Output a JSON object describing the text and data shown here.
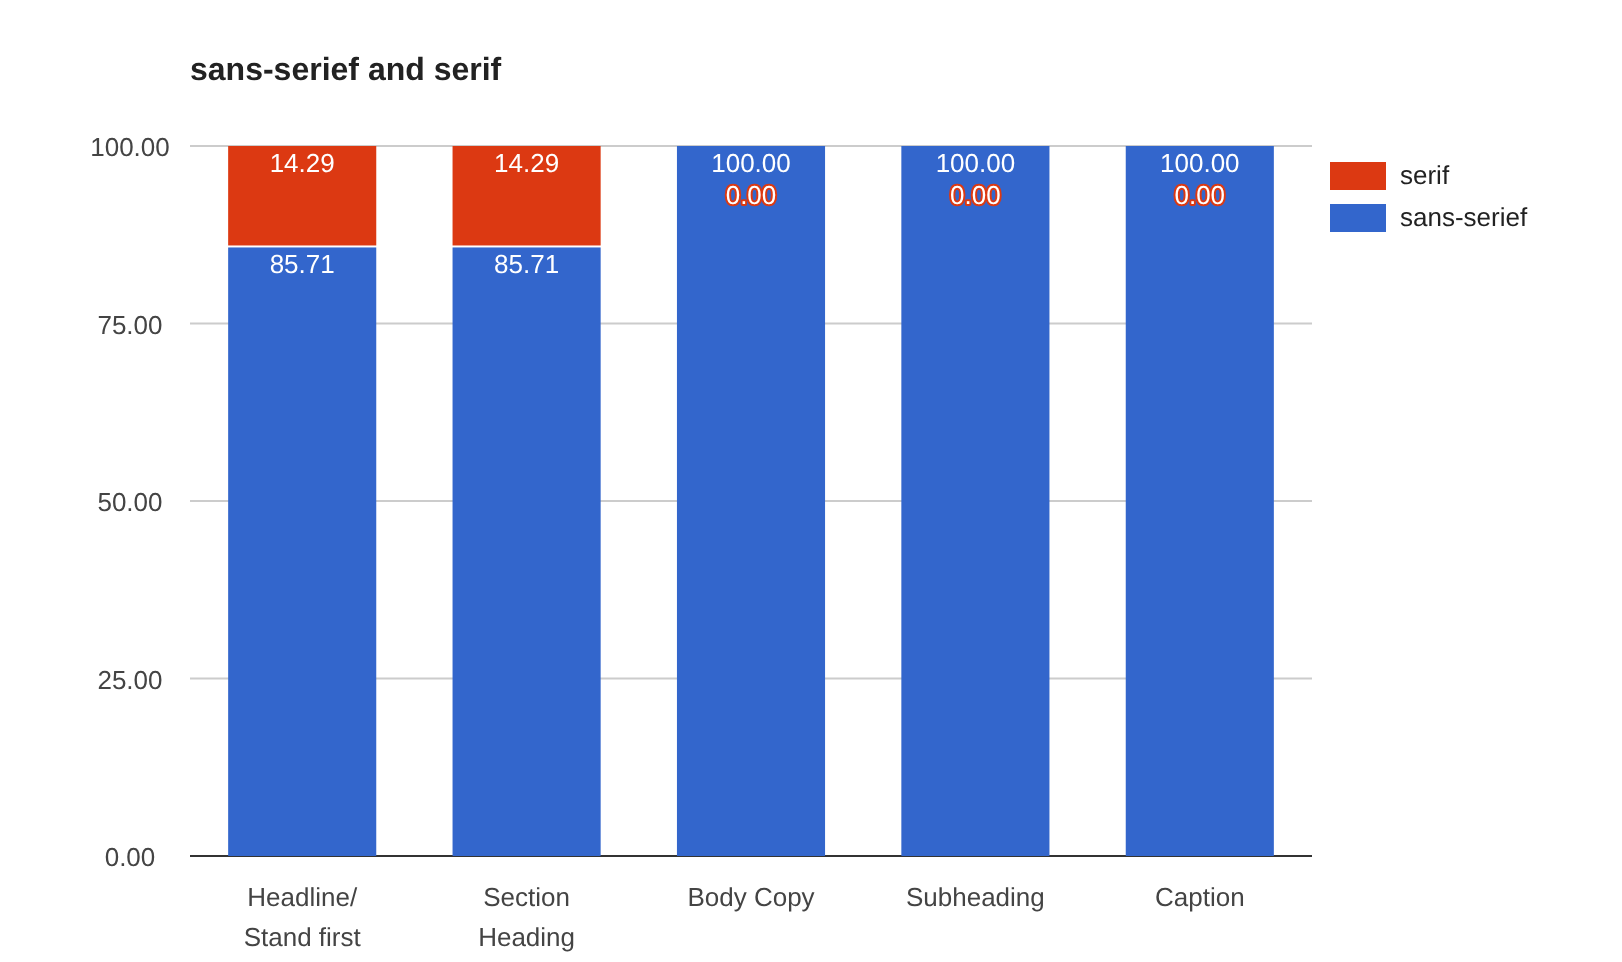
{
  "chart_data": {
    "type": "bar",
    "title": "sans-serief and serif",
    "stacked": true,
    "categories": [
      "Headline/ Stand first",
      "Section Heading",
      "Body Copy",
      "Subheading",
      "Caption"
    ],
    "series": [
      {
        "name": "sans-serief",
        "color": "#3366cc",
        "values": [
          85.71,
          85.71,
          100,
          100,
          100
        ],
        "value_labels": [
          "85.71",
          "85.71",
          "100.00",
          "100.00",
          "100.00"
        ]
      },
      {
        "name": "serif",
        "color": "#dc3912",
        "values": [
          14.29,
          14.29,
          0,
          0,
          0
        ],
        "value_labels": [
          "14.29",
          "14.29",
          "0.00",
          "0.00",
          "0.00"
        ]
      }
    ],
    "ylim": [
      0,
      100
    ],
    "yticks": [
      {
        "value": 0,
        "label": "0.00"
      },
      {
        "value": 25,
        "label": "25.00"
      },
      {
        "value": 50,
        "label": "50.00"
      },
      {
        "value": 75,
        "label": "75.00"
      },
      {
        "value": 100,
        "label": "100.00"
      }
    ],
    "grid": "y",
    "legend": "top right"
  }
}
